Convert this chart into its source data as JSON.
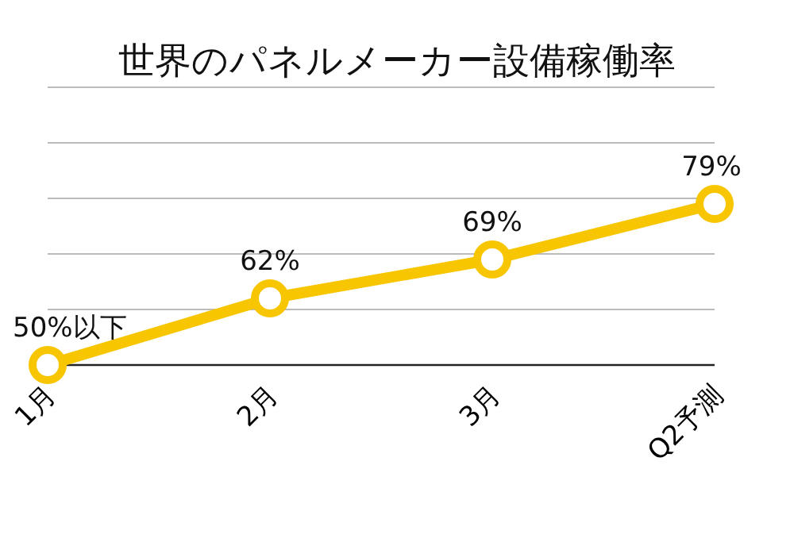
{
  "chart_data": {
    "type": "line",
    "title": "世界のパネルメーカー設備稼働率",
    "categories": [
      "1月",
      "2月",
      "3月",
      "Q2予測"
    ],
    "series": [
      {
        "color": "#f7c600",
        "values": [
          50,
          62,
          69,
          79
        ],
        "value_labels": [
          "50%以下",
          "62%",
          "69%",
          "79%"
        ]
      }
    ],
    "ylim": [
      50,
      100
    ],
    "yticks": [
      {
        "value": 50,
        "label": null
      },
      {
        "value": 60,
        "label": null
      },
      {
        "value": 70,
        "label": null
      },
      {
        "value": 80,
        "label": null
      },
      {
        "value": 90,
        "label": null
      },
      {
        "value": 100,
        "label": null
      }
    ],
    "tick_labels": "x",
    "grid": "y",
    "marker": "circle",
    "line_style": "solid"
  }
}
